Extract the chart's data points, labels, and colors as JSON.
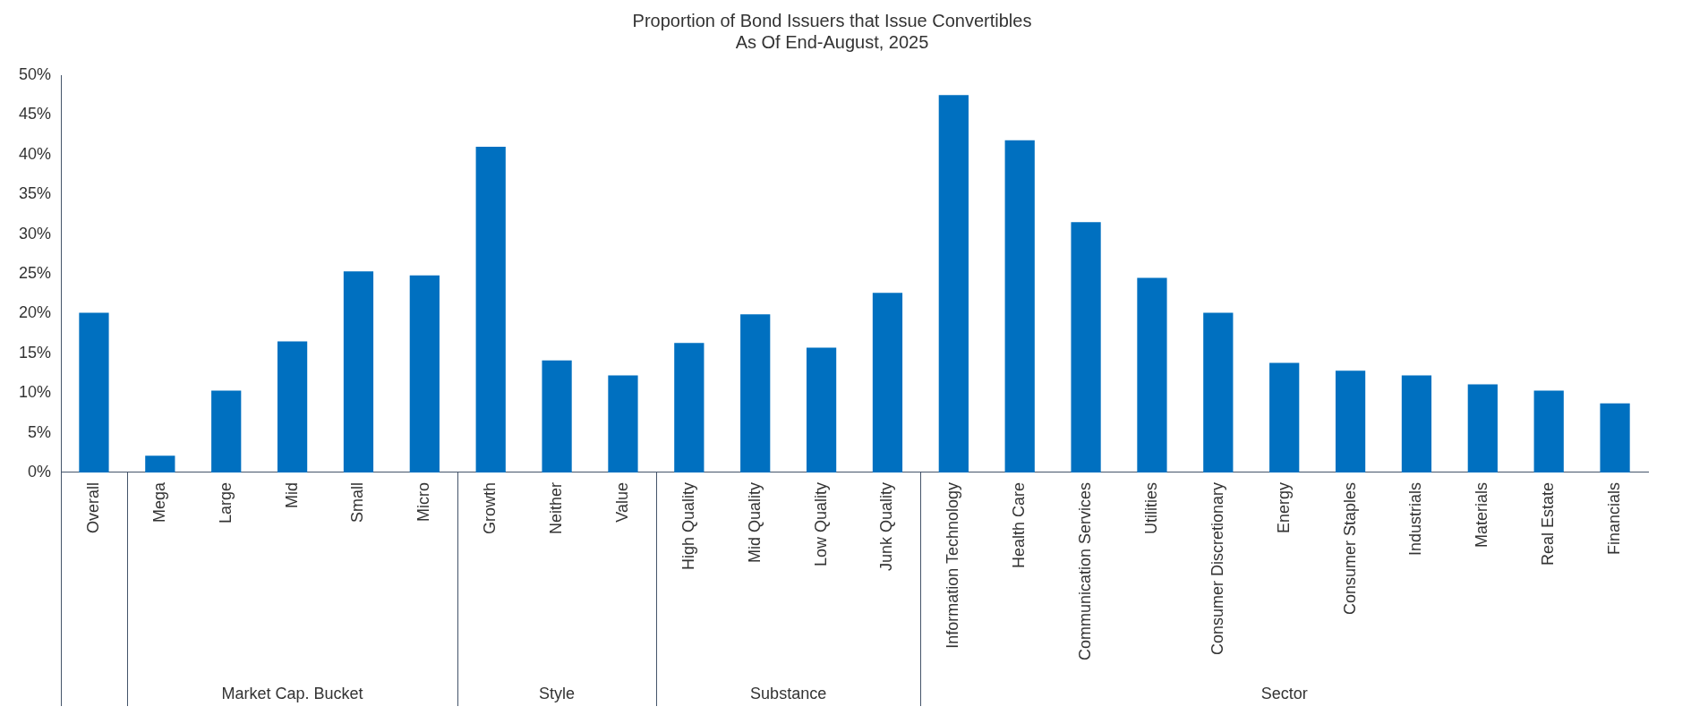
{
  "chart_data": {
    "type": "bar",
    "title": "Proportion of Bond Issuers that Issue Convertibles",
    "subtitle": "As Of End-August, 2025",
    "categories": [
      "Overall",
      "Mega",
      "Large",
      "Mid",
      "Small",
      "Micro",
      "Growth",
      "Neither",
      "Value",
      "High Quality",
      "Mid Quality",
      "Low Quality",
      "Junk Quality",
      "Information Technology",
      "Health Care",
      "Communication Services",
      "Utilities",
      "Consumer Discretionary",
      "Energy",
      "Consumer Staples",
      "Industrials",
      "Materials",
      "Real Estate",
      "Financials"
    ],
    "values": [
      20.1,
      2.1,
      10.3,
      16.5,
      25.3,
      24.8,
      41.0,
      14.1,
      12.2,
      16.3,
      19.9,
      15.7,
      22.6,
      47.5,
      41.8,
      31.5,
      24.5,
      20.1,
      13.8,
      12.8,
      12.2,
      11.1,
      10.3,
      8.7
    ],
    "color": "#0070c0",
    "ylim": [
      0,
      50
    ],
    "yticks": [
      {
        "value": 0,
        "label": "0%"
      },
      {
        "value": 5,
        "label": "5%"
      },
      {
        "value": 10,
        "label": "10%"
      },
      {
        "value": 15,
        "label": "15%"
      },
      {
        "value": 20,
        "label": "20%"
      },
      {
        "value": 25,
        "label": "25%"
      },
      {
        "value": 30,
        "label": "30%"
      },
      {
        "value": 35,
        "label": "35%"
      },
      {
        "value": 40,
        "label": "40%"
      },
      {
        "value": 45,
        "label": "45%"
      },
      {
        "value": 50,
        "label": "50%"
      }
    ],
    "annotations": [
      "Market Cap. Bucket",
      "Style",
      "Substance",
      "Sector"
    ],
    "grid": false,
    "legend": false
  }
}
